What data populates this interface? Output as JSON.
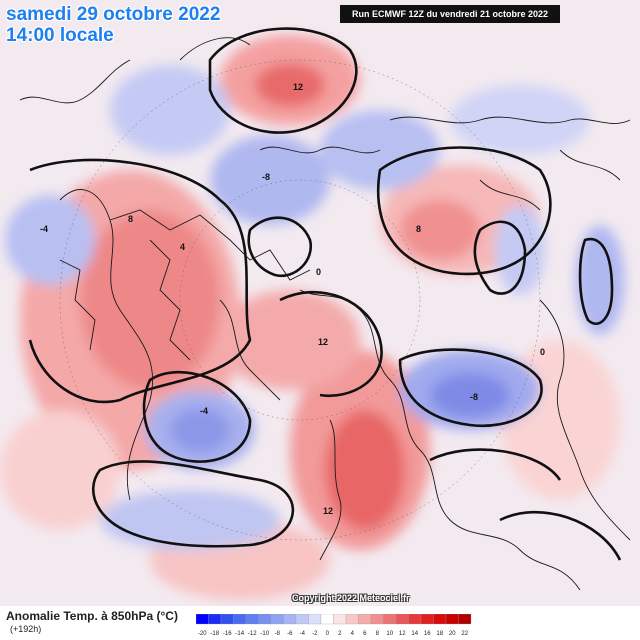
{
  "header": {
    "date": "samedi 29 octobre 2022",
    "time": "14:00 locale",
    "run": "Run ECMWF 12Z du vendredi 21 octobre 2022"
  },
  "footer": {
    "variable": "Anomalie Temp. à 850hPa (°C)",
    "lead": "(+192h)",
    "copyright": "Copyright 2022 Meteociel.fr"
  },
  "legend": {
    "ticks": [
      "-20",
      "-18",
      "-16",
      "-14",
      "-12",
      "-10",
      "-8",
      "-6",
      "-4",
      "-2",
      "0",
      "2",
      "4",
      "6",
      "8",
      "10",
      "12",
      "14",
      "16",
      "18",
      "20",
      "22"
    ],
    "colors": [
      "#0000ff",
      "#1a2cf5",
      "#3050f0",
      "#4a6af0",
      "#6080f0",
      "#7890f0",
      "#90a2f2",
      "#a8b4f4",
      "#c0c8f6",
      "#dce0fa",
      "#ffffff",
      "#fde4e4",
      "#f8c8c8",
      "#f4acac",
      "#f09090",
      "#ec7474",
      "#e85858",
      "#e43c3c",
      "#e02020",
      "#d80a0a",
      "#c80000",
      "#b00000"
    ]
  },
  "map": {
    "labels": [
      {
        "text": "12",
        "id": "label-12-atlantic"
      },
      {
        "text": "12",
        "id": "label-12-russia"
      },
      {
        "text": "12",
        "id": "label-12-north"
      },
      {
        "text": "8",
        "id": "label-8-canada"
      },
      {
        "text": "8",
        "id": "label-8-siberia"
      },
      {
        "text": "-8",
        "id": "label-minus8-asia"
      },
      {
        "text": "-8",
        "id": "label-minus8-greenland"
      },
      {
        "text": "-4",
        "id": "label-minus4-pacific"
      },
      {
        "text": "-4",
        "id": "label-minus4-canada"
      },
      {
        "text": "0",
        "id": "label-0-a"
      },
      {
        "text": "0",
        "id": "label-0-b"
      },
      {
        "text": "4",
        "id": "label-4-a"
      }
    ]
  }
}
